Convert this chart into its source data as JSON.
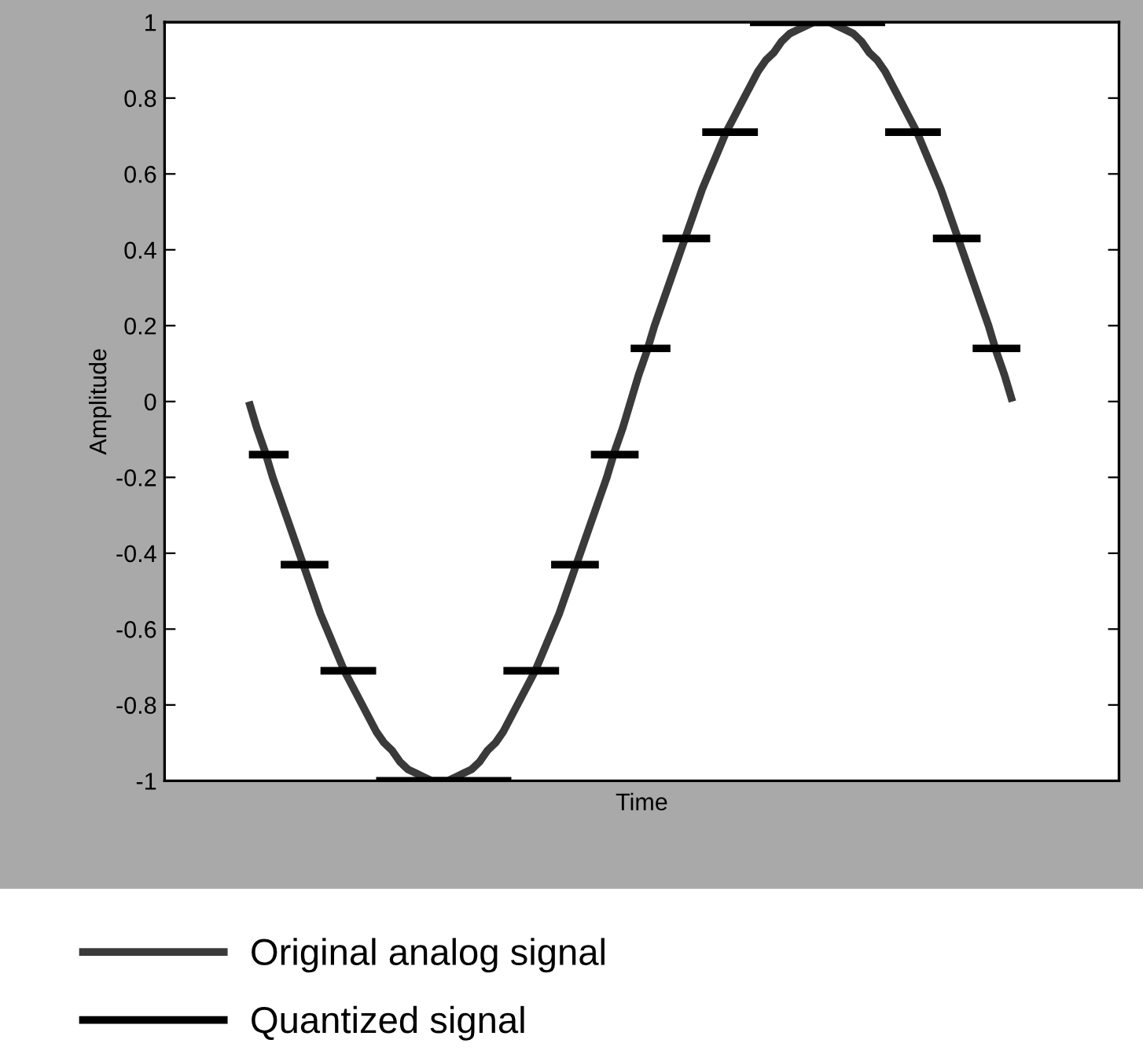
{
  "chart_data": {
    "type": "line",
    "xlabel": "Time",
    "ylabel": "Amplitude",
    "categories": [
      null,
      null,
      null,
      null,
      null,
      null,
      null,
      null,
      null,
      null,
      null,
      null,
      null,
      null,
      null,
      null,
      null,
      null,
      null,
      null,
      null,
      null,
      null,
      null,
      null,
      null,
      null,
      null,
      null,
      null,
      null,
      null,
      null,
      null,
      null,
      null,
      null,
      null,
      null,
      null,
      null,
      null,
      null,
      null,
      null,
      null,
      null,
      null,
      null,
      null,
      null,
      null,
      null,
      null,
      null,
      null,
      null,
      null,
      null,
      null,
      null,
      null,
      null,
      null,
      null,
      null,
      null,
      null,
      null,
      null,
      null,
      null,
      null,
      null,
      null,
      null,
      null,
      null,
      null,
      null,
      null,
      null,
      null,
      null,
      null,
      null,
      null,
      null,
      null,
      null,
      null,
      null,
      null,
      null,
      null,
      null,
      null,
      null
    ],
    "series": [
      {
        "name": "Original analog signal",
        "color": "#3a3a3a",
        "values": [
          0,
          -0.07,
          -0.13,
          -0.2,
          -0.26,
          -0.32,
          -0.38,
          -0.44,
          -0.5,
          -0.56,
          -0.61,
          -0.66,
          -0.71,
          -0.75,
          -0.79,
          -0.83,
          -0.87,
          -0.9,
          -0.92,
          -0.95,
          -0.97,
          -0.98,
          -0.99,
          -1,
          -1,
          -1,
          -0.99,
          -0.98,
          -0.97,
          -0.95,
          -0.92,
          -0.9,
          -0.87,
          -0.83,
          -0.79,
          -0.75,
          -0.71,
          -0.66,
          -0.61,
          -0.56,
          -0.5,
          -0.44,
          -0.38,
          -0.32,
          -0.26,
          -0.2,
          -0.13,
          -0.07,
          0,
          0.07,
          0.13,
          0.2,
          0.26,
          0.32,
          0.38,
          0.44,
          0.5,
          0.56,
          0.61,
          0.66,
          0.71,
          0.75,
          0.79,
          0.83,
          0.87,
          0.9,
          0.92,
          0.95,
          0.97,
          0.98,
          0.99,
          1,
          1,
          1,
          0.99,
          0.98,
          0.97,
          0.95,
          0.92,
          0.9,
          0.87,
          0.83,
          0.79,
          0.75,
          0.71,
          0.66,
          0.61,
          0.56,
          0.5,
          0.44,
          0.38,
          0.32,
          0.26,
          0.2,
          0.13,
          0.07,
          0,
          null
        ]
      },
      {
        "name": "Quantized signal",
        "color": "#000000",
        "values": [
          -0.14,
          -0.14,
          -0.14,
          -0.14,
          -0.14,
          -0.14,
          null,
          null,
          null,
          -0.71,
          -0.71,
          -0.71,
          -0.71,
          -0.71,
          -0.71,
          -0.71,
          -0.71,
          null,
          null,
          null,
          null,
          null,
          null,
          null,
          null,
          null,
          null,
          null,
          null,
          null,
          null,
          null,
          -0.71,
          -0.71,
          -0.71,
          -0.71,
          -0.71,
          -0.71,
          -0.71,
          -0.71,
          null,
          null,
          null,
          -0.14,
          -0.14,
          -0.14,
          -0.14,
          -0.14,
          -0.14,
          -0.14,
          null,
          null,
          0.43,
          0.43,
          0.43,
          0.43,
          0.43,
          0.43,
          0.43,
          null,
          null,
          null,
          null,
          1,
          1,
          1,
          1,
          1,
          1,
          1,
          1,
          1,
          1,
          1,
          1,
          1,
          1,
          1,
          1,
          1,
          1,
          null,
          null,
          null,
          null,
          null,
          0.43,
          0.43,
          0.43,
          0.43,
          0.43,
          0.43,
          0.43,
          null,
          null,
          null,
          null,
          null
        ]
      },
      {
        "color": "#000000",
        "values": [
          null,
          null,
          null,
          null,
          -0.43,
          -0.43,
          -0.43,
          -0.43,
          -0.43,
          -0.43,
          -0.43,
          null,
          null,
          null,
          null,
          null,
          -1,
          -1,
          -1,
          -1,
          -1,
          -1,
          -1,
          -1,
          -1,
          -1,
          -1,
          -1,
          -1,
          -1,
          -1,
          -1,
          -1,
          -1,
          null,
          null,
          null,
          null,
          -0.43,
          -0.43,
          -0.43,
          -0.43,
          -0.43,
          -0.43,
          -0.43,
          null,
          null,
          null,
          0.14,
          0.14,
          0.14,
          0.14,
          0.14,
          0.14,
          null,
          null,
          null,
          0.71,
          0.71,
          0.71,
          0.71,
          0.71,
          0.71,
          0.71,
          0.71,
          null,
          null,
          null,
          null,
          null,
          null,
          null,
          null,
          null,
          null,
          null,
          null,
          null,
          null,
          null,
          0.71,
          0.71,
          0.71,
          0.71,
          0.71,
          0.71,
          0.71,
          0.71,
          null,
          null,
          null,
          0.14,
          0.14,
          0.14,
          0.14,
          0.14,
          0.14,
          0.14
        ]
      }
    ],
    "ylim": [
      -1,
      1
    ],
    "yticks": [
      -1,
      -0.8,
      -0.6,
      -0.4,
      -0.2,
      0,
      0.2,
      0.4,
      0.6,
      0.8,
      1
    ],
    "grid": false,
    "legend": "bottom",
    "marker": "none",
    "line_style": "solid"
  }
}
